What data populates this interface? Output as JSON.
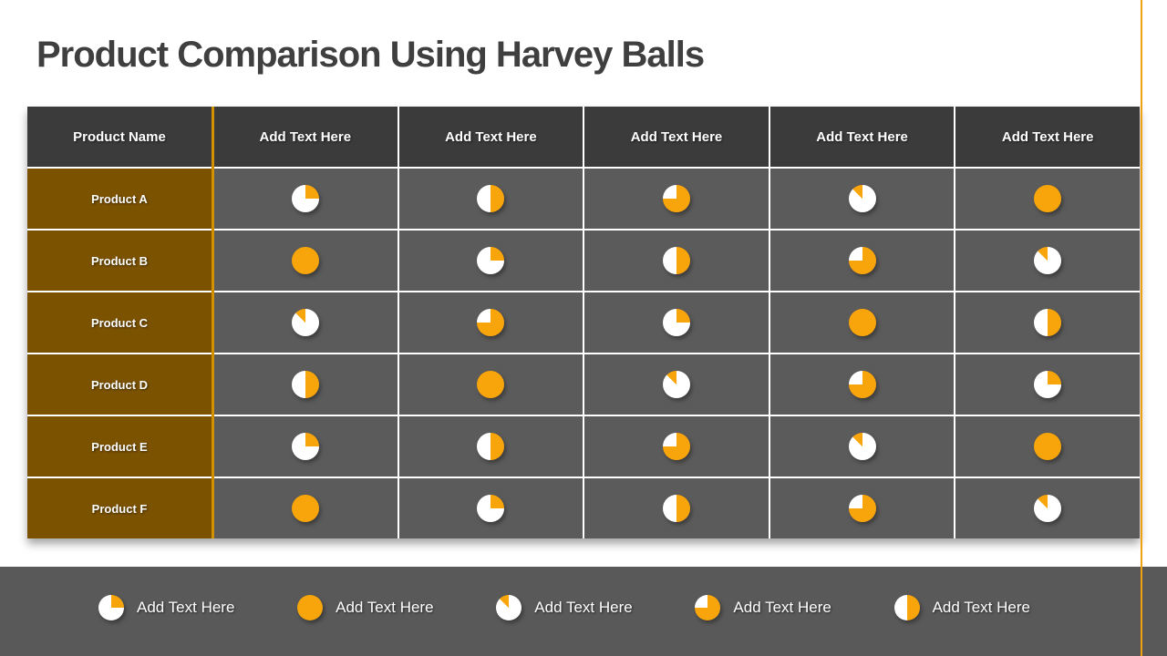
{
  "title": "Product Comparison Using Harvey Balls",
  "colors": {
    "orange": "#f7a50a",
    "ball_white": "#ffffff",
    "row_label_brown": "#7b5200",
    "header_gray": "#3b3b3b",
    "cell_gray": "#5b5b5b",
    "legend_bar_gray": "#595959",
    "title_gray": "#3f3f3f",
    "accent_line_orange": "#f0a30a"
  },
  "table": {
    "columns": [
      "Product Name",
      "Add Text Here",
      "Add Text Here",
      "Add Text Here",
      "Add Text Here",
      "Add Text Here"
    ],
    "rows": [
      {
        "name": "Product A",
        "values": [
          25,
          50,
          75,
          12.5,
          100
        ]
      },
      {
        "name": "Product B",
        "values": [
          100,
          25,
          50,
          75,
          12.5
        ]
      },
      {
        "name": "Product C",
        "values": [
          12.5,
          75,
          25,
          100,
          50
        ]
      },
      {
        "name": "Product D",
        "values": [
          50,
          100,
          12.5,
          75,
          25
        ]
      },
      {
        "name": "Product E",
        "values": [
          25,
          50,
          75,
          12.5,
          100
        ]
      },
      {
        "name": "Product F",
        "values": [
          100,
          25,
          50,
          75,
          12.5
        ]
      }
    ]
  },
  "legend": {
    "items": [
      {
        "value": 25,
        "label": "Add Text Here"
      },
      {
        "value": 100,
        "label": "Add Text Here"
      },
      {
        "value": 12.5,
        "label": "Add Text Here"
      },
      {
        "value": 75,
        "label": "Add Text Here"
      },
      {
        "value": 50,
        "label": "Add Text Here"
      }
    ]
  },
  "chart_data": {
    "type": "table",
    "title": "Product Comparison Using Harvey Balls",
    "columns": [
      "Product Name",
      "Add Text Here",
      "Add Text Here",
      "Add Text Here",
      "Add Text Here",
      "Add Text Here"
    ],
    "rows": [
      [
        "Product A",
        25,
        50,
        75,
        12.5,
        100
      ],
      [
        "Product B",
        100,
        25,
        50,
        75,
        12.5
      ],
      [
        "Product C",
        12.5,
        75,
        25,
        100,
        50
      ],
      [
        "Product D",
        50,
        100,
        12.5,
        75,
        25
      ],
      [
        "Product E",
        25,
        50,
        75,
        12.5,
        100
      ],
      [
        "Product F",
        100,
        25,
        50,
        75,
        12.5
      ]
    ],
    "value_unit": "percent-filled-harvey-ball"
  }
}
